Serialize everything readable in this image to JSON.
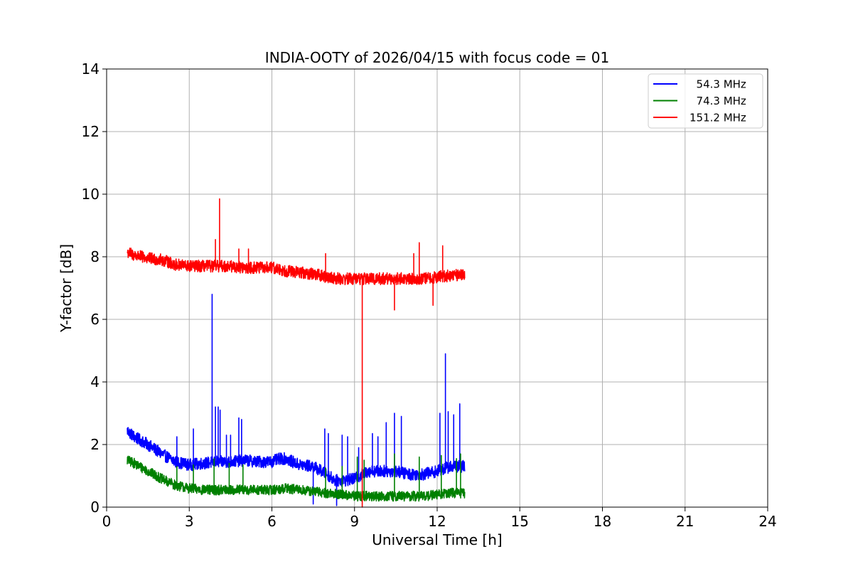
{
  "chart_data": {
    "type": "line",
    "title": "INDIA-OOTY of 2026/04/15 with focus code = 01",
    "xlabel": "Universal Time [h]",
    "ylabel": "Y-factor [dB]",
    "xlim": [
      0,
      24
    ],
    "ylim": [
      0,
      14
    ],
    "xticks": [
      0,
      3,
      6,
      9,
      12,
      15,
      18,
      21,
      24
    ],
    "yticks": [
      0,
      2,
      4,
      6,
      8,
      10,
      12,
      14
    ],
    "grid": true,
    "legend_position": "top-right",
    "series": [
      {
        "name": "54.3 MHz",
        "legend_label": "  54.3 MHz",
        "color": "#0000ff",
        "x_range": [
          0.75,
          13.0
        ],
        "baseline": [
          [
            0.75,
            2.45
          ],
          [
            1.0,
            2.25
          ],
          [
            1.5,
            2.0
          ],
          [
            2.0,
            1.7
          ],
          [
            2.5,
            1.45
          ],
          [
            3.0,
            1.35
          ],
          [
            3.5,
            1.4
          ],
          [
            4.0,
            1.45
          ],
          [
            4.5,
            1.45
          ],
          [
            5.0,
            1.5
          ],
          [
            5.5,
            1.45
          ],
          [
            6.0,
            1.45
          ],
          [
            6.3,
            1.55
          ],
          [
            6.5,
            1.55
          ],
          [
            7.0,
            1.35
          ],
          [
            7.5,
            1.3
          ],
          [
            8.0,
            1.05
          ],
          [
            8.3,
            0.85
          ],
          [
            8.6,
            0.85
          ],
          [
            9.0,
            0.9
          ],
          [
            9.5,
            1.15
          ],
          [
            10.0,
            1.15
          ],
          [
            10.5,
            1.15
          ],
          [
            11.0,
            1.05
          ],
          [
            11.5,
            1.05
          ],
          [
            12.0,
            1.15
          ],
          [
            12.5,
            1.3
          ],
          [
            13.0,
            1.3
          ]
        ],
        "noise_amplitude": 0.12,
        "spikes": [
          [
            2.55,
            2.25
          ],
          [
            3.15,
            2.5
          ],
          [
            3.83,
            6.8
          ],
          [
            3.95,
            3.2
          ],
          [
            4.05,
            3.2
          ],
          [
            4.12,
            3.1
          ],
          [
            4.35,
            2.3
          ],
          [
            4.5,
            2.3
          ],
          [
            4.8,
            2.85
          ],
          [
            4.9,
            2.8
          ],
          [
            7.5,
            0.1
          ],
          [
            7.92,
            2.5
          ],
          [
            8.05,
            2.35
          ],
          [
            8.35,
            0.05
          ],
          [
            8.55,
            2.3
          ],
          [
            8.75,
            2.25
          ],
          [
            9.15,
            1.9
          ],
          [
            9.65,
            2.35
          ],
          [
            9.85,
            2.25
          ],
          [
            10.15,
            2.7
          ],
          [
            10.45,
            3.0
          ],
          [
            10.7,
            2.9
          ],
          [
            12.1,
            3.0
          ],
          [
            12.3,
            4.9
          ],
          [
            12.4,
            3.05
          ],
          [
            12.6,
            2.95
          ],
          [
            12.82,
            3.3
          ]
        ]
      },
      {
        "name": "74.3 MHz",
        "legend_label": "  74.3 MHz",
        "color": "#008000",
        "x_range": [
          0.75,
          13.0
        ],
        "baseline": [
          [
            0.75,
            1.5
          ],
          [
            1.0,
            1.4
          ],
          [
            1.5,
            1.15
          ],
          [
            2.0,
            0.9
          ],
          [
            2.5,
            0.7
          ],
          [
            3.0,
            0.6
          ],
          [
            3.5,
            0.55
          ],
          [
            4.0,
            0.55
          ],
          [
            4.5,
            0.55
          ],
          [
            5.0,
            0.55
          ],
          [
            5.5,
            0.55
          ],
          [
            6.0,
            0.55
          ],
          [
            6.5,
            0.6
          ],
          [
            7.0,
            0.55
          ],
          [
            7.5,
            0.5
          ],
          [
            8.0,
            0.45
          ],
          [
            8.5,
            0.4
          ],
          [
            9.0,
            0.35
          ],
          [
            9.5,
            0.35
          ],
          [
            10.0,
            0.35
          ],
          [
            10.5,
            0.35
          ],
          [
            11.0,
            0.35
          ],
          [
            11.5,
            0.35
          ],
          [
            12.0,
            0.4
          ],
          [
            12.5,
            0.45
          ],
          [
            13.0,
            0.45
          ]
        ],
        "noise_amplitude": 0.1,
        "spikes": [
          [
            2.55,
            1.3
          ],
          [
            3.15,
            1.35
          ],
          [
            3.9,
            1.55
          ],
          [
            4.45,
            1.4
          ],
          [
            4.95,
            1.35
          ],
          [
            7.95,
            1.25
          ],
          [
            8.55,
            1.3
          ],
          [
            9.1,
            1.6
          ],
          [
            9.35,
            1.5
          ],
          [
            10.45,
            1.7
          ],
          [
            11.35,
            1.6
          ],
          [
            12.15,
            1.65
          ],
          [
            12.7,
            1.55
          ],
          [
            12.85,
            1.7
          ]
        ]
      },
      {
        "name": "151.2 MHz",
        "legend_label": "151.2 MHz",
        "color": "#ff0000",
        "x_range": [
          0.75,
          13.0
        ],
        "baseline": [
          [
            0.75,
            8.15
          ],
          [
            1.0,
            8.05
          ],
          [
            1.5,
            7.95
          ],
          [
            2.0,
            7.9
          ],
          [
            2.5,
            7.75
          ],
          [
            3.0,
            7.7
          ],
          [
            3.5,
            7.7
          ],
          [
            4.0,
            7.7
          ],
          [
            4.5,
            7.7
          ],
          [
            5.0,
            7.65
          ],
          [
            5.5,
            7.65
          ],
          [
            6.0,
            7.65
          ],
          [
            6.5,
            7.55
          ],
          [
            7.0,
            7.5
          ],
          [
            7.5,
            7.45
          ],
          [
            8.0,
            7.35
          ],
          [
            8.5,
            7.3
          ],
          [
            9.0,
            7.3
          ],
          [
            9.5,
            7.3
          ],
          [
            10.0,
            7.3
          ],
          [
            10.5,
            7.3
          ],
          [
            11.0,
            7.3
          ],
          [
            11.5,
            7.3
          ],
          [
            12.0,
            7.35
          ],
          [
            12.5,
            7.4
          ],
          [
            13.0,
            7.45
          ]
        ],
        "noise_amplitude": 0.12,
        "spikes": [
          [
            3.95,
            8.55
          ],
          [
            4.1,
            9.85
          ],
          [
            4.8,
            8.25
          ],
          [
            5.15,
            8.25
          ],
          [
            7.95,
            8.1
          ],
          [
            9.28,
            0.0
          ],
          [
            10.45,
            6.3
          ],
          [
            11.15,
            8.1
          ],
          [
            11.35,
            8.45
          ],
          [
            11.85,
            6.45
          ],
          [
            12.2,
            8.35
          ]
        ]
      }
    ]
  }
}
